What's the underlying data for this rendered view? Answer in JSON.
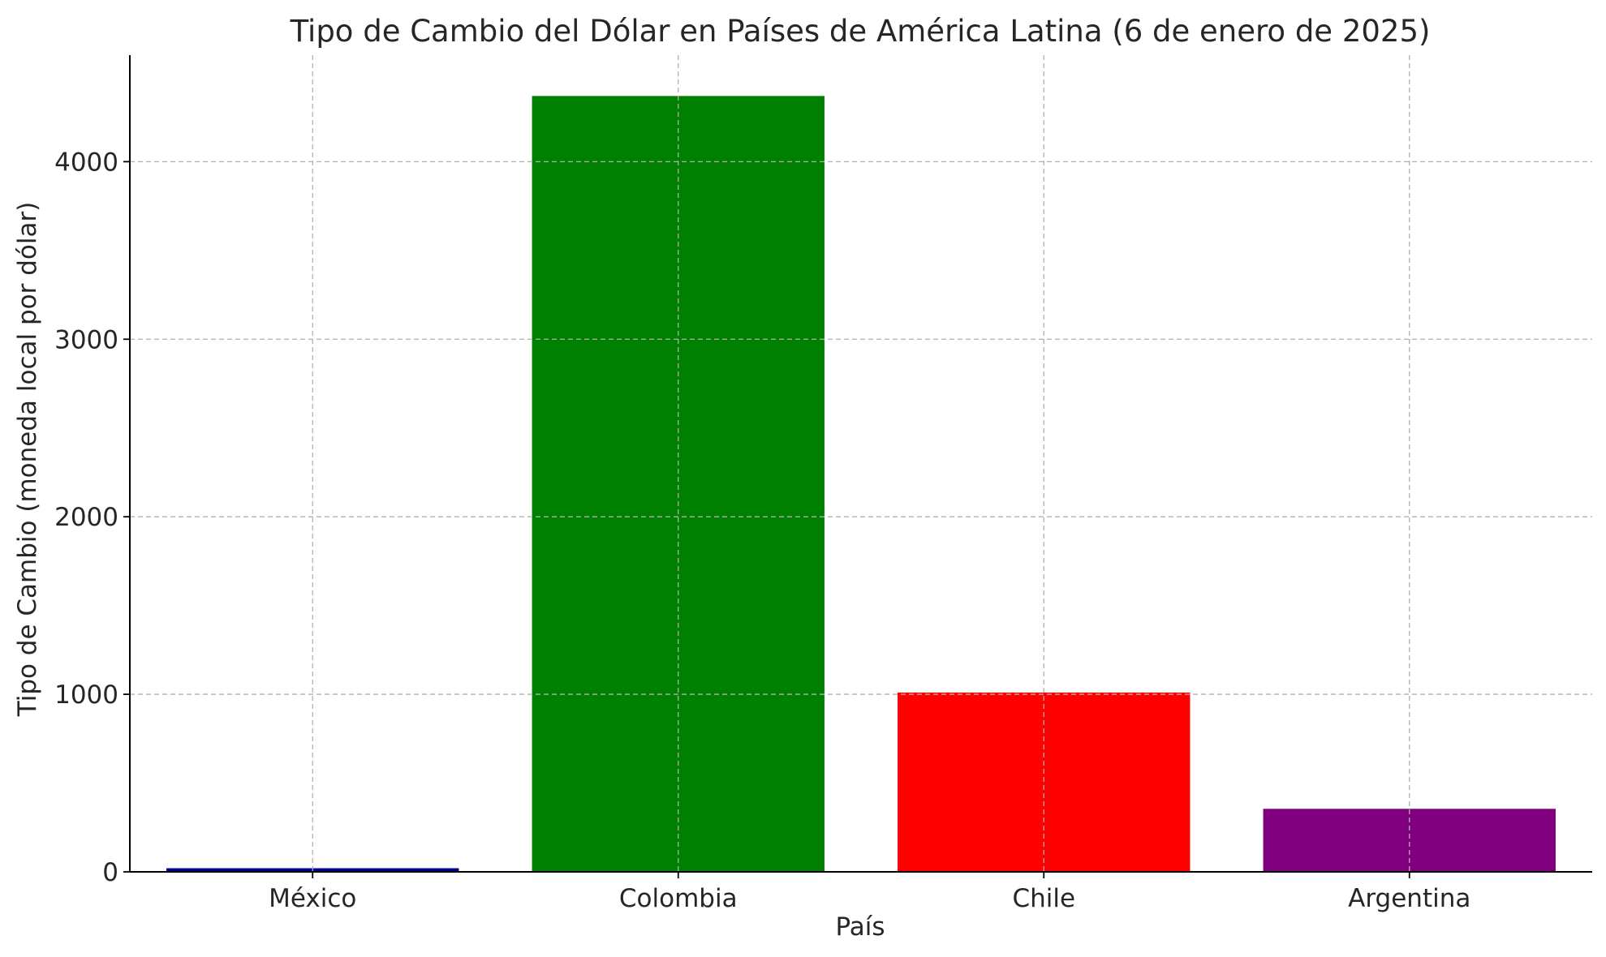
{
  "chart_data": {
    "type": "bar",
    "title": "Tipo de Cambio del Dólar en Países de América Latina (6 de enero de 2025)",
    "xlabel": "País",
    "ylabel": "Tipo de Cambio (moneda local por dólar)",
    "categories": [
      "México",
      "Colombia",
      "Chile",
      "Argentina"
    ],
    "values": [
      20.4,
      4370,
      1010,
      355
    ],
    "colors": [
      "#00008b",
      "#008000",
      "#ff0000",
      "#800080"
    ],
    "ylim": [
      0,
      4600
    ],
    "yticks": [
      0,
      1000,
      2000,
      3000,
      4000
    ],
    "ytick_labels": [
      "0",
      "1000",
      "2000",
      "3000",
      "4000"
    ],
    "grid": true
  }
}
